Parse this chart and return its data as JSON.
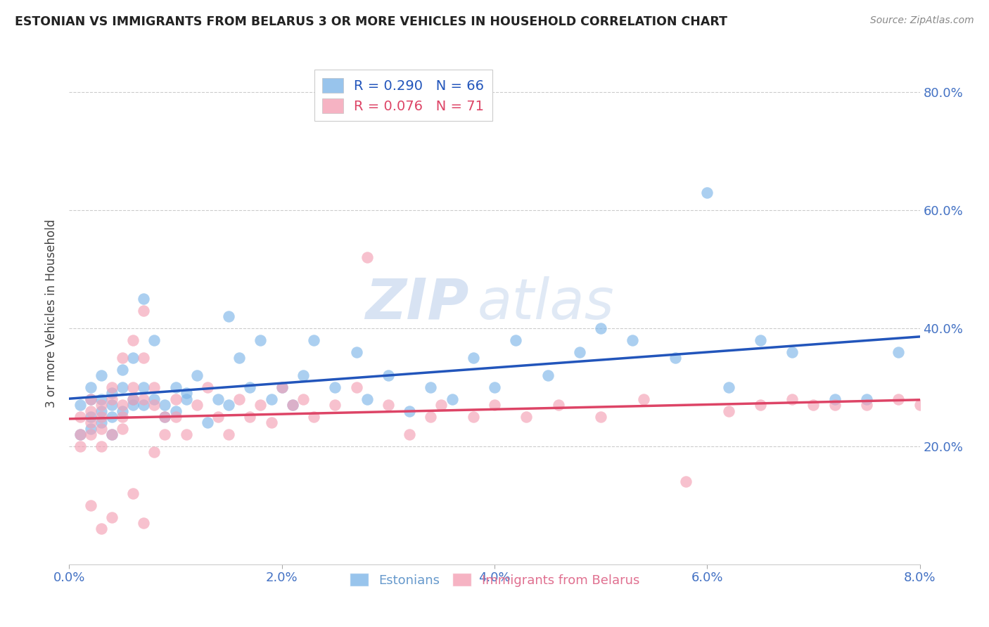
{
  "title": "ESTONIAN VS IMMIGRANTS FROM BELARUS 3 OR MORE VEHICLES IN HOUSEHOLD CORRELATION CHART",
  "source": "Source: ZipAtlas.com",
  "ylabel": "3 or more Vehicles in Household",
  "right_yticklabels": [
    "20.0%",
    "40.0%",
    "60.0%",
    "80.0%"
  ],
  "right_ytick_vals": [
    0.2,
    0.4,
    0.6,
    0.8
  ],
  "xlim": [
    0.0,
    0.08
  ],
  "ylim": [
    0.0,
    0.85
  ],
  "xticks": [
    0.0,
    0.02,
    0.04,
    0.06,
    0.08
  ],
  "xticklabels": [
    "0.0%",
    "2.0%",
    "4.0%",
    "6.0%",
    "8.0%"
  ],
  "legend_r_labels": [
    "R = 0.290",
    "R = 0.076"
  ],
  "legend_n_labels": [
    "N = 66",
    "N = 71"
  ],
  "legend_labels_bottom": [
    "Estonians",
    "Immigrants from Belarus"
  ],
  "blue_scatter_color": "#7EB6E8",
  "pink_scatter_color": "#F4A0B4",
  "blue_line_color": "#2255BB",
  "pink_line_color": "#DD4466",
  "watermark_zip": "ZIP",
  "watermark_atlas": "atlas",
  "background_color": "#FFFFFF",
  "grid_color": "#CCCCCC",
  "axis_tick_color": "#4472C4",
  "title_color": "#222222",
  "source_color": "#888888",
  "ylabel_color": "#444444",
  "blue_x": [
    0.001,
    0.001,
    0.002,
    0.002,
    0.002,
    0.002,
    0.003,
    0.003,
    0.003,
    0.003,
    0.004,
    0.004,
    0.004,
    0.004,
    0.005,
    0.005,
    0.005,
    0.006,
    0.006,
    0.006,
    0.007,
    0.007,
    0.007,
    0.008,
    0.008,
    0.009,
    0.009,
    0.01,
    0.01,
    0.011,
    0.011,
    0.012,
    0.013,
    0.014,
    0.015,
    0.015,
    0.016,
    0.017,
    0.018,
    0.019,
    0.02,
    0.021,
    0.022,
    0.023,
    0.025,
    0.027,
    0.028,
    0.03,
    0.032,
    0.034,
    0.036,
    0.038,
    0.04,
    0.042,
    0.045,
    0.048,
    0.05,
    0.053,
    0.057,
    0.06,
    0.062,
    0.065,
    0.068,
    0.072,
    0.075,
    0.078
  ],
  "blue_y": [
    0.27,
    0.22,
    0.3,
    0.28,
    0.25,
    0.23,
    0.26,
    0.28,
    0.32,
    0.24,
    0.27,
    0.29,
    0.25,
    0.22,
    0.3,
    0.33,
    0.26,
    0.35,
    0.28,
    0.27,
    0.45,
    0.3,
    0.27,
    0.28,
    0.38,
    0.27,
    0.25,
    0.3,
    0.26,
    0.29,
    0.28,
    0.32,
    0.24,
    0.28,
    0.42,
    0.27,
    0.35,
    0.3,
    0.38,
    0.28,
    0.3,
    0.27,
    0.32,
    0.38,
    0.3,
    0.36,
    0.28,
    0.32,
    0.26,
    0.3,
    0.28,
    0.35,
    0.3,
    0.38,
    0.32,
    0.36,
    0.4,
    0.38,
    0.35,
    0.63,
    0.3,
    0.38,
    0.36,
    0.28,
    0.28,
    0.36
  ],
  "pink_x": [
    0.001,
    0.001,
    0.001,
    0.002,
    0.002,
    0.002,
    0.002,
    0.002,
    0.003,
    0.003,
    0.003,
    0.003,
    0.004,
    0.004,
    0.004,
    0.005,
    0.005,
    0.005,
    0.005,
    0.006,
    0.006,
    0.006,
    0.007,
    0.007,
    0.007,
    0.008,
    0.008,
    0.009,
    0.009,
    0.01,
    0.01,
    0.011,
    0.012,
    0.013,
    0.014,
    0.015,
    0.016,
    0.017,
    0.018,
    0.019,
    0.02,
    0.021,
    0.022,
    0.023,
    0.025,
    0.027,
    0.028,
    0.03,
    0.032,
    0.034,
    0.035,
    0.038,
    0.04,
    0.043,
    0.046,
    0.05,
    0.054,
    0.058,
    0.062,
    0.065,
    0.068,
    0.07,
    0.072,
    0.075,
    0.078,
    0.08,
    0.003,
    0.004,
    0.006,
    0.007,
    0.008
  ],
  "pink_y": [
    0.25,
    0.22,
    0.2,
    0.28,
    0.26,
    0.24,
    0.22,
    0.1,
    0.27,
    0.25,
    0.23,
    0.2,
    0.3,
    0.28,
    0.22,
    0.35,
    0.27,
    0.25,
    0.23,
    0.38,
    0.3,
    0.28,
    0.43,
    0.35,
    0.28,
    0.3,
    0.27,
    0.25,
    0.22,
    0.28,
    0.25,
    0.22,
    0.27,
    0.3,
    0.25,
    0.22,
    0.28,
    0.25,
    0.27,
    0.24,
    0.3,
    0.27,
    0.28,
    0.25,
    0.27,
    0.3,
    0.52,
    0.27,
    0.22,
    0.25,
    0.27,
    0.25,
    0.27,
    0.25,
    0.27,
    0.25,
    0.28,
    0.14,
    0.26,
    0.27,
    0.28,
    0.27,
    0.27,
    0.27,
    0.28,
    0.27,
    0.06,
    0.08,
    0.12,
    0.07,
    0.19
  ]
}
